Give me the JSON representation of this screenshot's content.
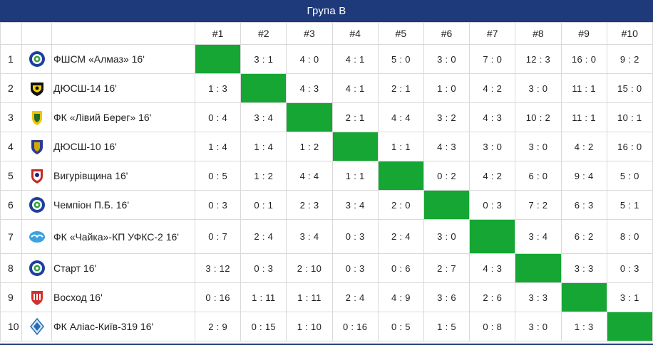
{
  "header": {
    "title": "Група B"
  },
  "columns": [
    "#1",
    "#2",
    "#3",
    "#4",
    "#5",
    "#6",
    "#7",
    "#8",
    "#9",
    "#10"
  ],
  "colors": {
    "header_bg": "#1f3a7a",
    "self_cell": "#15a634"
  },
  "rows": [
    {
      "num": "1",
      "team": "ФШСМ «Алмаз» 16'",
      "logo": "almaz-badge-icon",
      "scores": [
        "",
        "3 : 1",
        "4 : 0",
        "4 : 1",
        "5 : 0",
        "3 : 0",
        "7 : 0",
        "12 : 3",
        "16 : 0",
        "9 : 2"
      ]
    },
    {
      "num": "2",
      "team": "ДЮСШ-14 16'",
      "logo": "dyussh14-badge-icon",
      "scores": [
        "1 : 3",
        "",
        "4 : 3",
        "4 : 1",
        "2 : 1",
        "1 : 0",
        "4 : 2",
        "3 : 0",
        "11 : 1",
        "15 : 0"
      ]
    },
    {
      "num": "3",
      "team": "ФК «Лівий Берег» 16'",
      "logo": "livyi-bereg-badge-icon",
      "scores": [
        "0 : 4",
        "3 : 4",
        "",
        "2 : 1",
        "4 : 4",
        "3 : 2",
        "4 : 3",
        "10 : 2",
        "11 : 1",
        "10 : 1"
      ]
    },
    {
      "num": "4",
      "team": "ДЮСШ-10 16'",
      "logo": "dyussh10-badge-icon",
      "scores": [
        "1 : 4",
        "1 : 4",
        "1 : 2",
        "",
        "1 : 1",
        "4 : 3",
        "3 : 0",
        "3 : 0",
        "4 : 2",
        "16 : 0"
      ]
    },
    {
      "num": "5",
      "team": "Вигурівщина 16'",
      "logo": "vyhurivshchyna-badge-icon",
      "scores": [
        "0 : 5",
        "1 : 2",
        "4 : 4",
        "1 : 1",
        "",
        "0 : 2",
        "4 : 2",
        "6 : 0",
        "9 : 4",
        "5 : 0"
      ]
    },
    {
      "num": "6",
      "team": "Чемпіон П.Б. 16'",
      "logo": "champion-badge-icon",
      "scores": [
        "0 : 3",
        "0 : 1",
        "2 : 3",
        "3 : 4",
        "2 : 0",
        "",
        "0 : 3",
        "7 : 2",
        "6 : 3",
        "5 : 1"
      ]
    },
    {
      "num": "7",
      "team": "ФК «Чайка»-КП УФКС-2 16'",
      "logo": "chaika-badge-icon",
      "scores": [
        "0 : 7",
        "2 : 4",
        "3 : 4",
        "0 : 3",
        "2 : 4",
        "3 : 0",
        "",
        "3 : 4",
        "6 : 2",
        "8 : 0"
      ]
    },
    {
      "num": "8",
      "team": "Старт 16'",
      "logo": "start-badge-icon",
      "scores": [
        "3 : 12",
        "0 : 3",
        "2 : 10",
        "0 : 3",
        "0 : 6",
        "2 : 7",
        "4 : 3",
        "",
        "3 : 3",
        "0 : 3"
      ]
    },
    {
      "num": "9",
      "team": "Восход 16'",
      "logo": "voskhod-badge-icon",
      "scores": [
        "0 : 16",
        "1 : 11",
        "1 : 11",
        "2 : 4",
        "4 : 9",
        "3 : 6",
        "2 : 6",
        "3 : 3",
        "",
        "3 : 1"
      ]
    },
    {
      "num": "10",
      "team": "ФК Аліас-Київ-319 16'",
      "logo": "alias-badge-icon",
      "scores": [
        "2 : 9",
        "0 : 15",
        "1 : 10",
        "0 : 16",
        "0 : 5",
        "1 : 5",
        "0 : 8",
        "3 : 0",
        "1 : 3",
        ""
      ]
    }
  ]
}
